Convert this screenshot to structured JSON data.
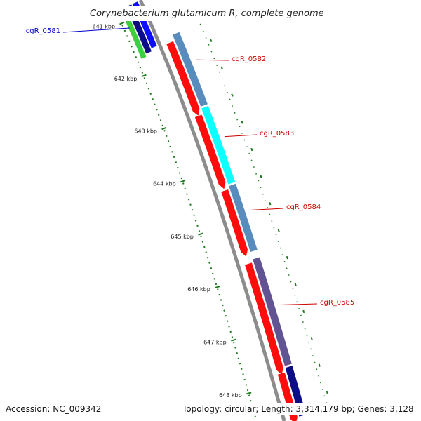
{
  "title": "Corynebacterium glutamicum R, complete genome",
  "accession": "Accession: NC_009342",
  "summary": "Topology: circular; Length: 3,314,179 bp; Genes: 3,128",
  "colors": {
    "backbone": "#8c8c8c",
    "forward_cds": "#ff0000",
    "tick": "#1f7a1f",
    "label_forward": "#cc0000",
    "label_reverse": "#0000cc",
    "cog_steelblue": "#4f86b8",
    "cog_cyan": "#00ffff",
    "cog_purple": "#5a4a8c",
    "cog_navy": "#000080",
    "cog_green": "#33cc33",
    "cog_blue": "#0000ff"
  },
  "ticks": [
    {
      "label": "641 kbp"
    },
    {
      "label": "642 kbp"
    },
    {
      "label": "643 kbp"
    },
    {
      "label": "644 kbp"
    },
    {
      "label": "645 kbp"
    },
    {
      "label": "646 kbp"
    },
    {
      "label": "647 kbp"
    },
    {
      "label": "648 kbp"
    }
  ],
  "genes": [
    {
      "label": "cgR_0581",
      "strand": "reverse",
      "cog_color": "#0000ff"
    },
    {
      "label": "cgR_0582",
      "strand": "forward",
      "cog_color": "#4f86b8"
    },
    {
      "label": "cgR_0583",
      "strand": "forward",
      "cog_color": "#00ffff"
    },
    {
      "label": "cgR_0584",
      "strand": "forward",
      "cog_color": "#4f86b8"
    },
    {
      "label": "cgR_0585",
      "strand": "forward",
      "cog_color": "#5a4a8c"
    }
  ]
}
